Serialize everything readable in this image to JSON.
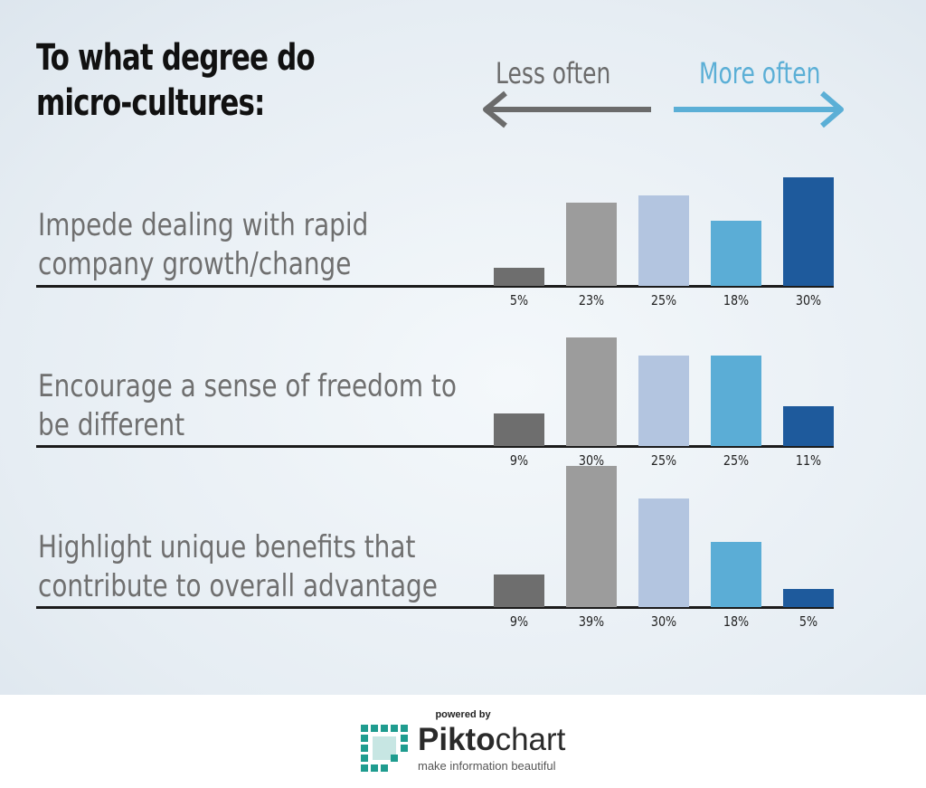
{
  "title_lines": [
    "To what degree do",
    "micro-cultures:"
  ],
  "direction": {
    "less_label": "Less often",
    "more_label": "More often",
    "less_color": "#6b6b6b",
    "more_color": "#5bafd6"
  },
  "colors": [
    "#6e6e6e",
    "#9c9c9c",
    "#b3c5e0",
    "#5badd6",
    "#1e5a9c"
  ],
  "chart_data": {
    "type": "bar",
    "title": "To what degree do micro-cultures:",
    "grid": false,
    "legend": "none",
    "groups": [
      {
        "label_lines": [
          "Impede dealing with rapid",
          "company growth/change"
        ],
        "values": [
          5,
          23,
          25,
          18,
          30
        ],
        "labels": [
          "5%",
          "23%",
          "25%",
          "18%",
          "30%"
        ]
      },
      {
        "label_lines": [
          "Encourage a sense of freedom to",
          "be different"
        ],
        "values": [
          9,
          30,
          25,
          25,
          11
        ],
        "labels": [
          "9%",
          "30%",
          "25%",
          "25%",
          "11%"
        ]
      },
      {
        "label_lines": [
          "Highlight unique benefits that",
          "contribute to overall advantage"
        ],
        "values": [
          9,
          39,
          30,
          18,
          5
        ],
        "labels": [
          "9%",
          "39%",
          "30%",
          "18%",
          "5%"
        ]
      }
    ]
  },
  "footer": {
    "powered_by": "powered by",
    "brand_part1": "Pikto",
    "brand_part2": "chart",
    "tagline": "make information beautiful",
    "logo_icon": "piktochart-logo-icon",
    "logo_color": "#1f9c8f"
  }
}
